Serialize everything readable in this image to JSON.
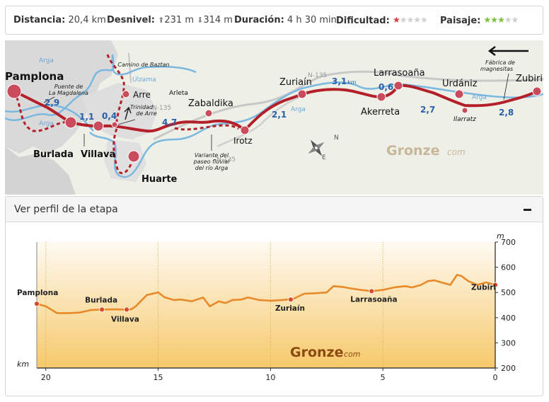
{
  "stats": {
    "distance_label": "Distancia:",
    "distance_value": "20,4 km",
    "elevation_label": "Desnivel:",
    "elevation_up": "231 m",
    "elevation_down": "314 m",
    "duration_label": "Duración:",
    "duration_value": "4 h 30 min",
    "difficulty_label": "Dificultad:",
    "difficulty_rating": 1,
    "landscape_label": "Paisaje:",
    "landscape_rating": 3,
    "rating_max": 5,
    "colors": {
      "difficulty": "#d63b3b",
      "landscape": "#7cc040",
      "off": "#cfcfcf"
    }
  },
  "map": {
    "towns": {
      "pamplona": "Pamplona",
      "burlada": "Burlada",
      "villava": "Villava",
      "huarte": "Huarte",
      "arre": "Arre",
      "zabaldika": "Zabaldika",
      "irotz": "Irotz",
      "zuriain": "Zuriaín",
      "akerreta": "Akerreta",
      "larrasoana": "Larrasoaña",
      "urdaniz": "Urdániz",
      "zubiri": "Zubiri",
      "arleta": "Arleta",
      "ilarratz": "Ilarratz"
    },
    "notes": {
      "puente": [
        "Puente de",
        "La Magdalena"
      ],
      "trinidad": [
        "Trinidad",
        "de Arre"
      ],
      "camino_baztan": "Camino de Baztan",
      "variante": [
        "Variante del",
        "paseo fluvial",
        "del río Arga"
      ],
      "fabrica": [
        "Fábrica de",
        "magnesitas"
      ]
    },
    "rivers": {
      "arga": "Arga",
      "ulzama": "Ulzama"
    },
    "roads": {
      "n135": "N-135"
    },
    "distances": {
      "d1": "2,9",
      "d2": "1,1",
      "d3": "0,4",
      "d4": "4,7",
      "d5": "2,1",
      "d6": "3,1",
      "d6_unit": "km",
      "d7": "0,6",
      "d8": "2,7",
      "d9": "2,8"
    },
    "watermark_main": "Gronze",
    "watermark_suffix": "com",
    "compass": [
      "N",
      "E"
    ],
    "colors": {
      "route": "#b3202a",
      "river": "#7ab8e0",
      "road": "#c8c8c8",
      "distance": "#2a5fa8"
    }
  },
  "profile": {
    "header": "Ver perfil de la etapa",
    "watermark_main": "Gronze",
    "watermark_suffix": "com",
    "y_unit": "m",
    "x_unit": "km",
    "y_ticks": [
      "700",
      "600",
      "500",
      "400",
      "300",
      "200"
    ],
    "x_ticks": [
      "20",
      "15",
      "10",
      "5",
      "0"
    ]
  },
  "chart_data": {
    "type": "area",
    "title": "",
    "xlabel": "km",
    "ylabel": "m",
    "xlim": [
      20.4,
      0
    ],
    "ylim": [
      200,
      700
    ],
    "grid": true,
    "x": [
      20.4,
      20.0,
      19.5,
      19.0,
      18.5,
      18.0,
      17.5,
      17.0,
      16.5,
      16.2,
      16.0,
      15.5,
      15.0,
      14.7,
      14.3,
      14.0,
      13.5,
      13.0,
      12.7,
      12.3,
      12.0,
      11.7,
      11.3,
      11.0,
      10.5,
      10.0,
      9.5,
      9.0,
      8.5,
      8.0,
      7.5,
      7.2,
      6.8,
      6.5,
      6.0,
      5.5,
      5.0,
      4.5,
      4.0,
      3.7,
      3.3,
      3.0,
      2.7,
      2.4,
      2.0,
      1.7,
      1.5,
      1.2,
      0.8,
      0.4,
      0.0
    ],
    "y": [
      455,
      445,
      418,
      418,
      420,
      430,
      432,
      433,
      432,
      433,
      445,
      490,
      500,
      480,
      470,
      472,
      465,
      480,
      445,
      465,
      458,
      470,
      472,
      480,
      470,
      467,
      470,
      474,
      495,
      497,
      500,
      525,
      522,
      517,
      510,
      505,
      510,
      520,
      525,
      520,
      530,
      545,
      548,
      540,
      530,
      570,
      565,
      545,
      530,
      540,
      530
    ],
    "points": [
      {
        "name": "Pamplona",
        "x": 20.4,
        "y": 455
      },
      {
        "name": "Burlada",
        "x": 17.5,
        "y": 432
      },
      {
        "name": "Villava",
        "x": 16.4,
        "y": 432
      },
      {
        "name": "Zuriaín",
        "x": 9.1,
        "y": 472
      },
      {
        "name": "Larrasoaña",
        "x": 5.5,
        "y": 505
      },
      {
        "name": "Zubiri",
        "x": 0.0,
        "y": 530
      }
    ]
  }
}
